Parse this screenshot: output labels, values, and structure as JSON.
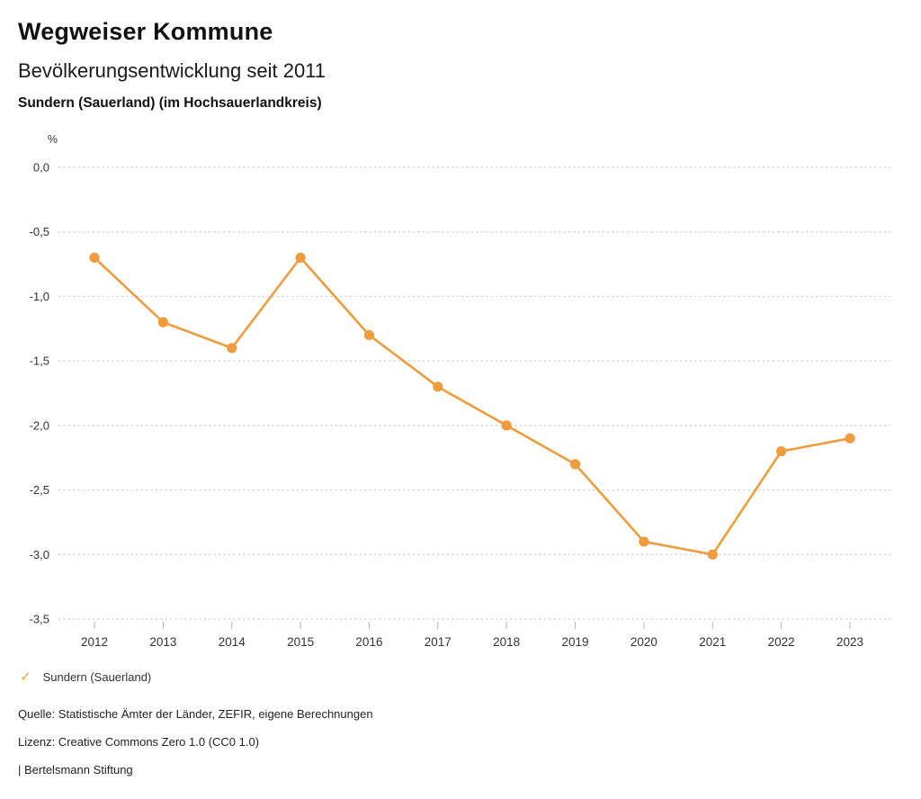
{
  "header": {
    "title": "Wegweiser Kommune",
    "subtitle": "Bevölkerungsentwicklung seit 2011",
    "location": "Sundern (Sauerland) (im Hochsauerlandkreis)"
  },
  "chart_data": {
    "type": "line",
    "title": "Bevölkerungsentwicklung seit 2011",
    "subtitle": "Sundern (Sauerland) (im Hochsauerlandkreis)",
    "unit_label": "%",
    "categories": [
      "2012",
      "2013",
      "2014",
      "2015",
      "2016",
      "2017",
      "2018",
      "2019",
      "2020",
      "2021",
      "2022",
      "2023"
    ],
    "series": [
      {
        "name": "Sundern (Sauerland)",
        "values": [
          -0.7,
          -1.2,
          -1.4,
          -0.7,
          -1.3,
          -1.7,
          -2.0,
          -2.3,
          -2.9,
          -3.0,
          -2.2,
          -2.1
        ],
        "color": "#EF9C3E"
      }
    ],
    "ylim": [
      -3.5,
      0
    ],
    "y_ticks": [
      0.0,
      -0.5,
      -1.0,
      -1.5,
      -2.0,
      -2.5,
      -3.0,
      -3.5
    ],
    "y_tick_labels": [
      "0,0",
      "-0,5",
      "-1,0",
      "-1,5",
      "-2,0",
      "-2,5",
      "-3,0",
      "-3,5"
    ],
    "grid": "horizontal-dotted",
    "legend_position": "bottom-left"
  },
  "legend": {
    "items": [
      {
        "label": "Sundern (Sauerland)",
        "checked": true,
        "check_color": "#EF9C3E"
      }
    ]
  },
  "icons": {
    "check_glyph": "✓"
  },
  "footer": {
    "source": "Quelle: Statistische Ämter der Länder, ZEFIR, eigene Berechnungen",
    "license": "Lizenz: Creative Commons Zero 1.0 (CC0 1.0)",
    "attribution": "| Bertelsmann Stiftung"
  },
  "colors": {
    "series": "#EF9C3E",
    "grid": "#c9c9c9",
    "tick": "#b5b5b5",
    "axis_text": "#333333",
    "footer_text": "#222222"
  }
}
